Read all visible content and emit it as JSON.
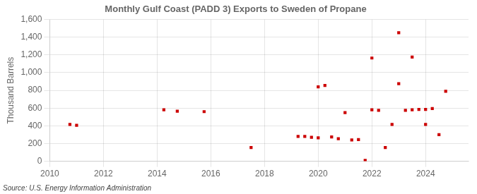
{
  "chart_data": {
    "type": "scatter",
    "title": "Monthly Gulf Coast (PADD 3) Exports to Sweden of Propane",
    "ylabel": "Thousand Barrels",
    "source": "Source: U.S. Energy Information Administration",
    "color": "#cc0000",
    "marker": "square",
    "grid": true,
    "xlim": [
      2010.0,
      2025.6
    ],
    "xticks": [
      2010,
      2012,
      2014,
      2016,
      2018,
      2020,
      2022,
      2024
    ],
    "ylim": [
      0,
      1600
    ],
    "yticks": [
      0,
      200,
      400,
      600,
      800,
      {
        "value": 1000,
        "label": "1,000"
      },
      {
        "value": 1200,
        "label": "1,200"
      },
      {
        "value": 1400,
        "label": "1,400"
      },
      {
        "value": 1600,
        "label": "1,600"
      }
    ],
    "x": [
      2010.75,
      2011.0,
      2014.25,
      2014.75,
      2015.75,
      2017.5,
      2019.25,
      2019.5,
      2019.75,
      2020.0,
      2020.0,
      2020.25,
      2020.5,
      2020.75,
      2021.0,
      2021.25,
      2021.5,
      2021.75,
      2022.0,
      2022.0,
      2022.25,
      2022.5,
      2022.75,
      2023.0,
      2023.0,
      2023.25,
      2023.5,
      2023.5,
      2023.75,
      2024.0,
      2024.0,
      2024.25,
      2024.5,
      2024.75
    ],
    "values": [
      415,
      405,
      580,
      565,
      560,
      155,
      280,
      280,
      270,
      265,
      840,
      855,
      275,
      255,
      550,
      240,
      245,
      10,
      580,
      1165,
      575,
      155,
      415,
      875,
      1450,
      575,
      580,
      1175,
      585,
      415,
      585,
      595,
      300,
      790
    ]
  }
}
